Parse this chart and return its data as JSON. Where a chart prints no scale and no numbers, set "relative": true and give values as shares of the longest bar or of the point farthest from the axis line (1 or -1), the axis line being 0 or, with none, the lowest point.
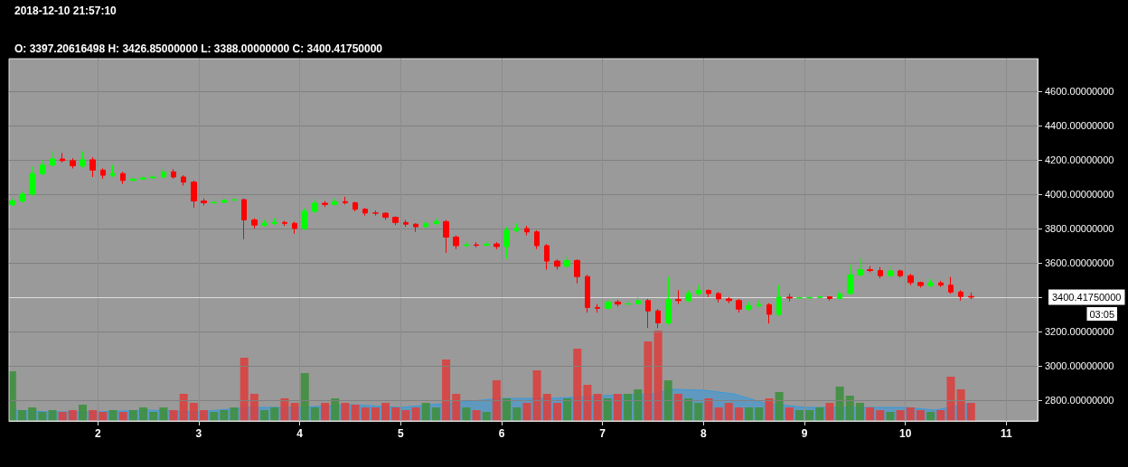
{
  "chart_data": [
    {
      "type": "candlestick",
      "annotations": [
        "2018-12-10 21:57:10",
        "O: 3397.20616498 H: 3426.85000000 L: 3388.00000000 C: 3400.41750000",
        "03:05"
      ],
      "x": [
        1.15,
        1.25,
        1.35,
        1.45,
        1.55,
        1.65,
        1.75,
        1.85,
        1.95,
        2.05,
        2.15,
        2.25,
        2.35,
        2.45,
        2.55,
        2.65,
        2.75,
        2.85,
        2.95,
        3.05,
        3.15,
        3.25,
        3.35,
        3.45,
        3.55,
        3.65,
        3.75,
        3.85,
        3.95,
        4.05,
        4.15,
        4.25,
        4.35,
        4.45,
        4.55,
        4.65,
        4.75,
        4.85,
        4.95,
        5.05,
        5.15,
        5.25,
        5.35,
        5.45,
        5.55,
        5.65,
        5.75,
        5.85,
        5.95,
        6.05,
        6.15,
        6.25,
        6.35,
        6.45,
        6.55,
        6.65,
        6.75,
        6.85,
        6.95,
        7.05,
        7.15,
        7.25,
        7.35,
        7.45,
        7.55,
        7.65,
        7.75,
        7.85,
        7.95,
        8.05,
        8.15,
        8.25,
        8.35,
        8.45,
        8.55,
        8.65,
        8.75,
        8.85,
        8.95,
        9.05,
        9.15,
        9.25,
        9.35,
        9.45,
        9.55,
        9.65,
        9.75,
        9.85,
        9.95,
        10.05,
        10.15,
        10.25,
        10.35,
        10.45,
        10.55,
        10.65
      ],
      "series": [
        {
          "colors": [
            "#00ff00",
            "#00ff00",
            "#00ff00",
            "#00ff00",
            "#00ff00",
            "#ff0000",
            "#ff0000",
            "#00ff00",
            "#ff0000",
            "#ff0000",
            "#00ff00",
            "#ff0000",
            "#00ff00",
            "#00ff00",
            "#00ff00",
            "#00ff00",
            "#ff0000",
            "#ff0000",
            "#ff0000",
            "#ff0000",
            "#00ff00",
            "#00ff00",
            "#00ff00",
            "#ff0000",
            "#ff0000",
            "#00ff00",
            "#00ff00",
            "#ff0000",
            "#ff0000",
            "#00ff00",
            "#00ff00",
            "#ff0000",
            "#00ff00",
            "#ff0000",
            "#ff0000",
            "#ff0000",
            "#ff0000",
            "#ff0000",
            "#ff0000",
            "#ff0000",
            "#ff0000",
            "#00ff00",
            "#00ff00",
            "#ff0000",
            "#ff0000",
            "#00ff00",
            "#ff0000",
            "#00ff00",
            "#ff0000",
            "#00ff00",
            "#00ff00",
            "#ff0000",
            "#ff0000",
            "#ff0000",
            "#ff0000",
            "#00ff00",
            "#ff0000",
            "#ff0000",
            "#ff0000",
            "#00ff00",
            "#ff0000",
            "#00ff00",
            "#00ff00",
            "#ff0000",
            "#ff0000",
            "#00ff00",
            "#ff0000",
            "#00ff00",
            "#00ff00",
            "#ff0000",
            "#ff0000",
            "#ff0000",
            "#ff0000",
            "#00ff00",
            "#00ff00",
            "#ff0000",
            "#00ff00",
            "#ff0000",
            "#00ff00",
            "#00ff00",
            "#00ff00",
            "#ff0000",
            "#00ff00",
            "#00ff00",
            "#00ff00",
            "#ff0000",
            "#ff0000",
            "#00ff00",
            "#ff0000",
            "#ff0000",
            "#ff0000",
            "#00ff00",
            "#ff0000",
            "#ff0000",
            "#ff0000",
            "#ff0000"
          ],
          "ohlc": [
            [
              3940,
              3975,
              3930,
              3960
            ],
            [
              3960,
              4015,
              3950,
              4000
            ],
            [
              4000,
              4160,
              3990,
              4120
            ],
            [
              4120,
              4200,
              4110,
              4170
            ],
            [
              4170,
              4251,
              4160,
              4205
            ],
            [
              4205,
              4240,
              4185,
              4195
            ],
            [
              4195,
              4210,
              4150,
              4165
            ],
            [
              4165,
              4250,
              4155,
              4200
            ],
            [
              4200,
              4215,
              4100,
              4140
            ],
            [
              4140,
              4150,
              4090,
              4110
            ],
            [
              4110,
              4170,
              4100,
              4120
            ],
            [
              4120,
              4130,
              4060,
              4080
            ],
            [
              4080,
              4110,
              4070,
              4088
            ],
            [
              4088,
              4110,
              4080,
              4095
            ],
            [
              4095,
              4120,
              4085,
              4100
            ],
            [
              4100,
              4150,
              4090,
              4130
            ],
            [
              4130,
              4145,
              4090,
              4100
            ],
            [
              4100,
              4110,
              4050,
              4070
            ],
            [
              4070,
              4080,
              3920,
              3960
            ],
            [
              3960,
              3975,
              3935,
              3950
            ],
            [
              3950,
              3970,
              3940,
              3952
            ],
            [
              3952,
              3985,
              3945,
              3965
            ],
            [
              3965,
              3990,
              3955,
              3968
            ],
            [
              3968,
              3975,
              3737,
              3850
            ],
            [
              3850,
              3860,
              3800,
              3820
            ],
            [
              3820,
              3850,
              3810,
              3830
            ],
            [
              3830,
              3860,
              3820,
              3835
            ],
            [
              3835,
              3845,
              3815,
              3830
            ],
            [
              3830,
              3840,
              3770,
              3800
            ],
            [
              3800,
              3920,
              3790,
              3900
            ],
            [
              3900,
              3970,
              3890,
              3947
            ],
            [
              3947,
              3960,
              3925,
              3940
            ],
            [
              3940,
              3975,
              3935,
              3956
            ],
            [
              3956,
              3985,
              3940,
              3950
            ],
            [
              3950,
              3955,
              3900,
              3912
            ],
            [
              3912,
              3920,
              3875,
              3890
            ],
            [
              3890,
              3905,
              3875,
              3889
            ],
            [
              3889,
              3895,
              3850,
              3865
            ],
            [
              3865,
              3870,
              3820,
              3835
            ],
            [
              3835,
              3850,
              3810,
              3825
            ],
            [
              3825,
              3830,
              3780,
              3810
            ],
            [
              3810,
              3850,
              3800,
              3830
            ],
            [
              3830,
              3860,
              3820,
              3840
            ],
            [
              3840,
              3850,
              3658,
              3750
            ],
            [
              3750,
              3760,
              3680,
              3700
            ],
            [
              3700,
              3725,
              3690,
              3705
            ],
            [
              3705,
              3720,
              3690,
              3702
            ],
            [
              3702,
              3725,
              3695,
              3710
            ],
            [
              3710,
              3720,
              3680,
              3695
            ],
            [
              3695,
              3810,
              3623,
              3789
            ],
            [
              3789,
              3830,
              3780,
              3800
            ],
            [
              3800,
              3815,
              3760,
              3780
            ],
            [
              3780,
              3790,
              3680,
              3700
            ],
            [
              3700,
              3710,
              3560,
              3610
            ],
            [
              3610,
              3620,
              3560,
              3580
            ],
            [
              3580,
              3640,
              3570,
              3614
            ],
            [
              3614,
              3620,
              3480,
              3520
            ],
            [
              3520,
              3530,
              3310,
              3340
            ],
            [
              3340,
              3360,
              3310,
              3335
            ],
            [
              3335,
              3390,
              3325,
              3372
            ],
            [
              3372,
              3385,
              3345,
              3360
            ],
            [
              3360,
              3380,
              3350,
              3362
            ],
            [
              3362,
              3400,
              3355,
              3380
            ],
            [
              3380,
              3390,
              3220,
              3320
            ],
            [
              3320,
              3330,
              3219,
              3250
            ],
            [
              3250,
              3518,
              3240,
              3386
            ],
            [
              3386,
              3440,
              3360,
              3380
            ],
            [
              3380,
              3440,
              3370,
              3421
            ],
            [
              3421,
              3470,
              3410,
              3439
            ],
            [
              3439,
              3445,
              3400,
              3421
            ],
            [
              3421,
              3430,
              3370,
              3390
            ],
            [
              3390,
              3400,
              3365,
              3380
            ],
            [
              3380,
              3390,
              3310,
              3330
            ],
            [
              3330,
              3375,
              3320,
              3350
            ],
            [
              3350,
              3380,
              3340,
              3356
            ],
            [
              3356,
              3365,
              3246,
              3300
            ],
            [
              3300,
              3470,
              3290,
              3400
            ],
            [
              3400,
              3420,
              3375,
              3395
            ],
            [
              3395,
              3410,
              3385,
              3396
            ],
            [
              3396,
              3410,
              3388,
              3398
            ],
            [
              3398,
              3415,
              3390,
              3402
            ],
            [
              3402,
              3405,
              3380,
              3392
            ],
            [
              3392,
              3440,
              3385,
              3421
            ],
            [
              3421,
              3590,
              3415,
              3530
            ],
            [
              3530,
              3627,
              3520,
              3560
            ],
            [
              3560,
              3580,
              3545,
              3555
            ],
            [
              3555,
              3575,
              3510,
              3525
            ],
            [
              3525,
              3580,
              3515,
              3553
            ],
            [
              3553,
              3560,
              3515,
              3525
            ],
            [
              3525,
              3535,
              3470,
              3485
            ],
            [
              3485,
              3490,
              3455,
              3468
            ],
            [
              3468,
              3505,
              3460,
              3483
            ],
            [
              3483,
              3495,
              3460,
              3470
            ],
            [
              3470,
              3518,
              3420,
              3430
            ],
            [
              3430,
              3440,
              3380,
              3404
            ],
            [
              3404,
              3427,
              3388,
              3400
            ]
          ]
        }
      ],
      "xlim": [
        1.12,
        11.31
      ],
      "xticks": [
        2,
        3,
        4,
        5,
        6,
        7,
        8,
        9,
        10,
        11
      ],
      "ylim": [
        2679,
        4789
      ],
      "yticks": [
        {
          "value": 2800,
          "label": "2800.00000000"
        },
        {
          "value": 3000,
          "label": "3000.00000000"
        },
        {
          "value": 3200,
          "label": "3200.00000000"
        },
        {
          "value": 3400,
          "label": null
        },
        {
          "value": 3600,
          "label": "3600.00000000"
        },
        {
          "value": 3800,
          "label": "3800.00000000"
        },
        {
          "value": 4000,
          "label": "4000.00000000"
        },
        {
          "value": 4200,
          "label": "4200.00000000"
        },
        {
          "value": 4400,
          "label": "4400.00000000"
        },
        {
          "value": 4600,
          "label": "4600.00000000"
        }
      ],
      "ref_lines": [
        {
          "axis": "y",
          "value": 3400.4175,
          "label": "3400.41750000",
          "color": "#dddddd"
        }
      ],
      "grid": true
    },
    {
      "type": "bar",
      "relative": true,
      "tick_labels": false,
      "xlim": [
        1.12,
        11.31
      ],
      "x": [
        1.15,
        1.25,
        1.35,
        1.45,
        1.55,
        1.65,
        1.75,
        1.85,
        1.95,
        2.05,
        2.15,
        2.25,
        2.35,
        2.45,
        2.55,
        2.65,
        2.75,
        2.85,
        2.95,
        3.05,
        3.15,
        3.25,
        3.35,
        3.45,
        3.55,
        3.65,
        3.75,
        3.85,
        3.95,
        4.05,
        4.15,
        4.25,
        4.35,
        4.45,
        4.55,
        4.65,
        4.75,
        4.85,
        4.95,
        5.05,
        5.15,
        5.25,
        5.35,
        5.45,
        5.55,
        5.65,
        5.75,
        5.85,
        5.95,
        6.05,
        6.15,
        6.25,
        6.35,
        6.45,
        6.55,
        6.65,
        6.75,
        6.85,
        6.95,
        7.05,
        7.15,
        7.25,
        7.35,
        7.45,
        7.55,
        7.65,
        7.75,
        7.85,
        7.95,
        8.05,
        8.15,
        8.25,
        8.35,
        8.45,
        8.55,
        8.65,
        8.75,
        8.85,
        8.95,
        9.05,
        9.15,
        9.25,
        9.35,
        9.45,
        9.55,
        9.65,
        9.75,
        9.85,
        9.95,
        10.05,
        10.15,
        10.25,
        10.35,
        10.45,
        10.55,
        10.65
      ],
      "series": [
        {
          "colors": [
            "#3f8f3f",
            "#3f8f3f",
            "#3f8f3f",
            "#3f8f3f",
            "#3f8f3f",
            "#d9413f",
            "#d9413f",
            "#3f8f3f",
            "#d9413f",
            "#d9413f",
            "#3f8f3f",
            "#d9413f",
            "#3f8f3f",
            "#3f8f3f",
            "#3f8f3f",
            "#3f8f3f",
            "#d9413f",
            "#d9413f",
            "#d9413f",
            "#d9413f",
            "#3f8f3f",
            "#3f8f3f",
            "#3f8f3f",
            "#d9413f",
            "#d9413f",
            "#3f8f3f",
            "#3f8f3f",
            "#d9413f",
            "#d9413f",
            "#3f8f3f",
            "#3f8f3f",
            "#d9413f",
            "#3f8f3f",
            "#d9413f",
            "#d9413f",
            "#d9413f",
            "#d9413f",
            "#d9413f",
            "#d9413f",
            "#d9413f",
            "#d9413f",
            "#3f8f3f",
            "#3f8f3f",
            "#d9413f",
            "#d9413f",
            "#3f8f3f",
            "#d9413f",
            "#3f8f3f",
            "#d9413f",
            "#3f8f3f",
            "#3f8f3f",
            "#d9413f",
            "#d9413f",
            "#d9413f",
            "#d9413f",
            "#3f8f3f",
            "#d9413f",
            "#d9413f",
            "#d9413f",
            "#3f8f3f",
            "#d9413f",
            "#3f8f3f",
            "#3f8f3f",
            "#d9413f",
            "#d9413f",
            "#3f8f3f",
            "#d9413f",
            "#3f8f3f",
            "#3f8f3f",
            "#d9413f",
            "#d9413f",
            "#d9413f",
            "#d9413f",
            "#3f8f3f",
            "#3f8f3f",
            "#d9413f",
            "#3f8f3f",
            "#d9413f",
            "#3f8f3f",
            "#3f8f3f",
            "#3f8f3f",
            "#d9413f",
            "#3f8f3f",
            "#3f8f3f",
            "#3f8f3f",
            "#d9413f",
            "#d9413f",
            "#3f8f3f",
            "#d9413f",
            "#d9413f",
            "#d9413f",
            "#3f8f3f",
            "#d9413f",
            "#d9413f",
            "#d9413f",
            "#d9413f"
          ],
          "values": [
            0.55,
            0.12,
            0.15,
            0.1,
            0.12,
            0.1,
            0.12,
            0.18,
            0.12,
            0.1,
            0.12,
            0.1,
            0.12,
            0.15,
            0.1,
            0.15,
            0.12,
            0.3,
            0.2,
            0.12,
            0.1,
            0.12,
            0.15,
            0.7,
            0.3,
            0.12,
            0.15,
            0.25,
            0.2,
            0.53,
            0.15,
            0.2,
            0.25,
            0.2,
            0.18,
            0.15,
            0.15,
            0.2,
            0.15,
            0.12,
            0.15,
            0.2,
            0.15,
            0.68,
            0.3,
            0.15,
            0.12,
            0.1,
            0.45,
            0.25,
            0.15,
            0.2,
            0.56,
            0.3,
            0.2,
            0.25,
            0.8,
            0.4,
            0.3,
            0.25,
            0.3,
            0.3,
            0.35,
            0.88,
            1,
            0.45,
            0.3,
            0.25,
            0.2,
            0.25,
            0.15,
            0.2,
            0.15,
            0.15,
            0.15,
            0.25,
            0.32,
            0.15,
            0.12,
            0.12,
            0.15,
            0.2,
            0.38,
            0.28,
            0.2,
            0.15,
            0.12,
            0.1,
            0.12,
            0.15,
            0.12,
            0.1,
            0.12,
            0.49,
            0.35,
            0.2
          ]
        },
        {
          "type": "area",
          "color": "#3a9ad9",
          "x": [
            1.15,
            1.5,
            2,
            2.5,
            3,
            3.5,
            4,
            4.5,
            5,
            5.5,
            6,
            6.5,
            7,
            7.5,
            7.7,
            8,
            8.3,
            8.6,
            9,
            9.5,
            10,
            10.3,
            10.65
          ],
          "values": [
            0.12,
            0.1,
            0.1,
            0.12,
            0.1,
            0.15,
            0.15,
            0.18,
            0.15,
            0.2,
            0.25,
            0.25,
            0.28,
            0.3,
            0.35,
            0.34,
            0.3,
            0.2,
            0.15,
            0.15,
            0.15,
            0.12,
            0.2
          ]
        }
      ]
    }
  ]
}
